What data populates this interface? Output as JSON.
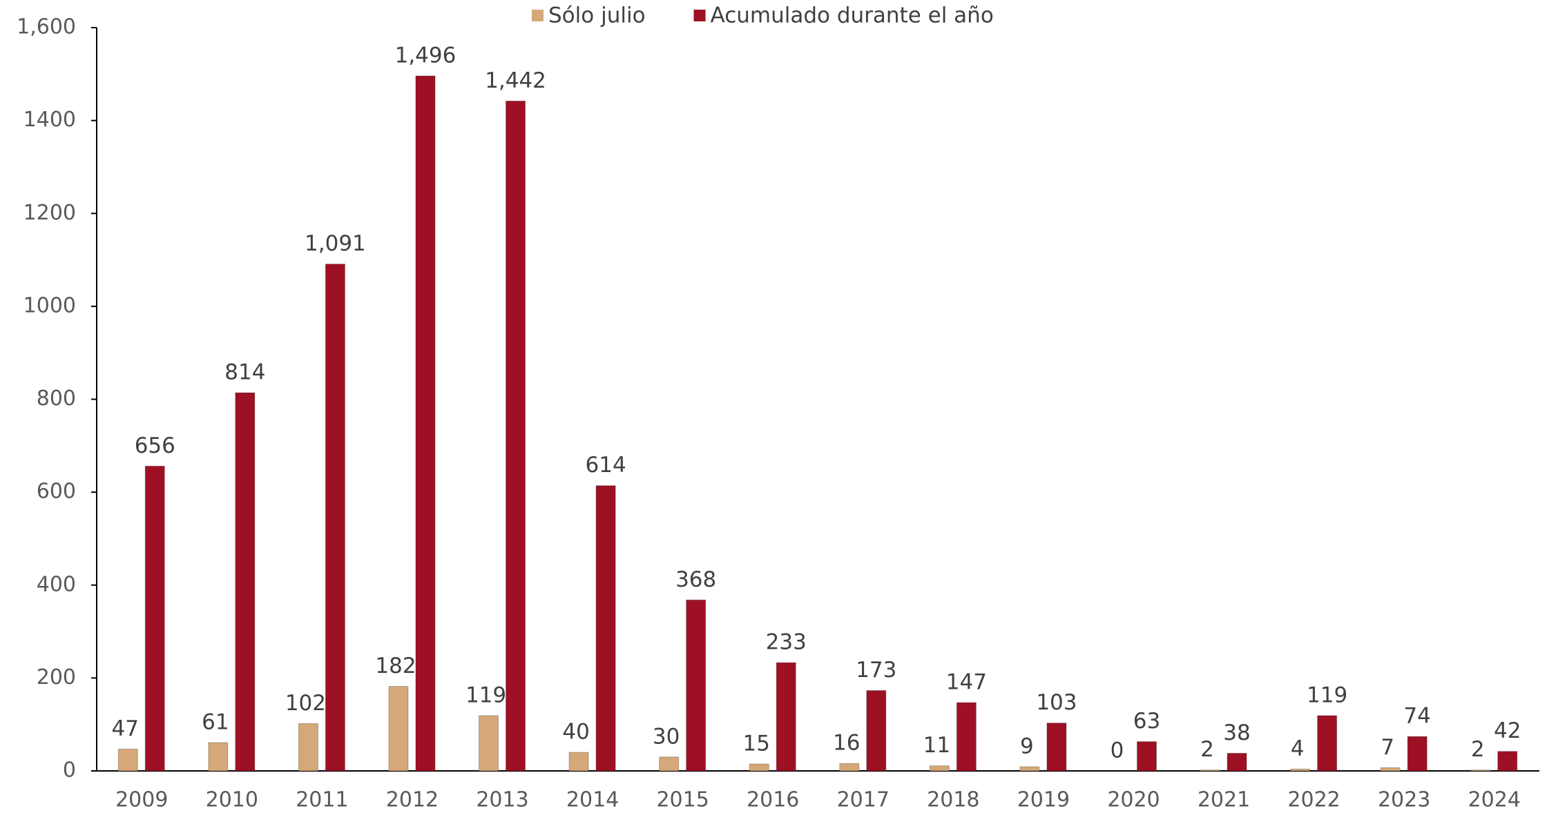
{
  "chart_data": {
    "type": "bar",
    "categories": [
      "2009",
      "2010",
      "2011",
      "2012",
      "2013",
      "2014",
      "2015",
      "2016",
      "2017",
      "2018",
      "2019",
      "2020",
      "2021",
      "2022",
      "2023",
      "2024"
    ],
    "series": [
      {
        "name": "Sólo julio",
        "color": "#d4a878",
        "values": [
          47,
          61,
          102,
          182,
          119,
          40,
          30,
          15,
          16,
          11,
          9,
          0,
          2,
          4,
          7,
          2
        ]
      },
      {
        "name": "Acumulado durante el año",
        "color": "#9e1124",
        "values": [
          656,
          814,
          1091,
          1496,
          1442,
          614,
          368,
          233,
          173,
          147,
          103,
          63,
          38,
          119,
          74,
          42
        ]
      }
    ],
    "ylim": [
      0,
      1600
    ],
    "yticks": [
      0,
      200,
      400,
      600,
      800,
      1000,
      1200,
      1400,
      {
        "value": 1600,
        "label": "1,600"
      }
    ],
    "value_labels": {
      "1": [
        "656",
        "814",
        "1,091",
        "1,496",
        "1,442",
        "614",
        "368",
        "233",
        "173",
        "147",
        "103",
        "63",
        "38",
        "119",
        "74",
        "42"
      ]
    },
    "legend": "top"
  }
}
